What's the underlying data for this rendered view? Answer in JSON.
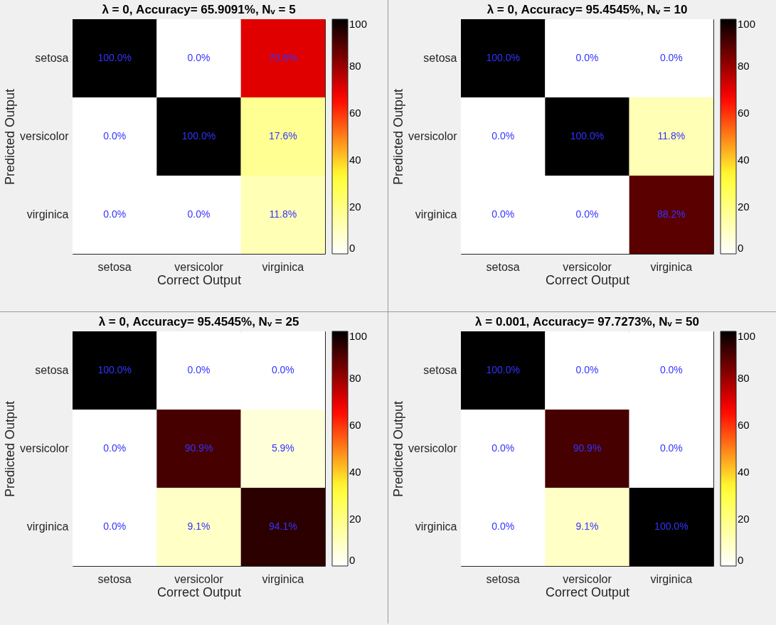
{
  "chart_data": [
    {
      "type": "heatmap",
      "title": "λ = 0, Accuracy= 65.9091%, Nᵥ = 5",
      "xlabel": "Correct Output",
      "ylabel": "Predicted Output",
      "categories": [
        "setosa",
        "versicolor",
        "virginica"
      ],
      "y_categories": [
        "setosa",
        "versicolor",
        "virginica"
      ],
      "cells": [
        [
          100,
          0,
          70.6
        ],
        [
          0,
          100,
          17.6
        ],
        [
          0,
          0,
          11.8
        ]
      ],
      "cell_labels": [
        [
          "100.0%",
          "0.0%",
          "70.6%"
        ],
        [
          "0.0%",
          "100.0%",
          "17.6%"
        ],
        [
          "0.0%",
          "0.0%",
          "11.8%"
        ]
      ],
      "clim": [
        0,
        100
      ],
      "cticks": [
        0,
        20,
        40,
        60,
        80,
        100
      ]
    },
    {
      "type": "heatmap",
      "title": "λ = 0, Accuracy= 95.4545%, Nᵥ = 10",
      "xlabel": "Correct Output",
      "ylabel": "Predicted Output",
      "categories": [
        "setosa",
        "versicolor",
        "virginica"
      ],
      "y_categories": [
        "setosa",
        "versicolor",
        "virginica"
      ],
      "cells": [
        [
          100,
          0,
          0
        ],
        [
          0,
          100,
          11.8
        ],
        [
          0,
          0,
          88.2
        ]
      ],
      "cell_labels": [
        [
          "100.0%",
          "0.0%",
          "0.0%"
        ],
        [
          "0.0%",
          "100.0%",
          "11.8%"
        ],
        [
          "0.0%",
          "0.0%",
          "88.2%"
        ]
      ],
      "clim": [
        0,
        100
      ],
      "cticks": [
        0,
        20,
        40,
        60,
        80,
        100
      ]
    },
    {
      "type": "heatmap",
      "title": "λ = 0, Accuracy= 95.4545%, Nᵥ = 25",
      "xlabel": "Correct Output",
      "ylabel": "Predicted Output",
      "categories": [
        "setosa",
        "versicolor",
        "virginica"
      ],
      "y_categories": [
        "setosa",
        "versicolor",
        "virginica"
      ],
      "cells": [
        [
          100,
          0,
          0
        ],
        [
          0,
          90.9,
          5.9
        ],
        [
          0,
          9.1,
          94.1
        ]
      ],
      "cell_labels": [
        [
          "100.0%",
          "0.0%",
          "0.0%"
        ],
        [
          "0.0%",
          "90.9%",
          "5.9%"
        ],
        [
          "0.0%",
          "9.1%",
          "94.1%"
        ]
      ],
      "clim": [
        0,
        100
      ],
      "cticks": [
        0,
        20,
        40,
        60,
        80,
        100
      ]
    },
    {
      "type": "heatmap",
      "title": "λ = 0.001, Accuracy= 97.7273%, Nᵥ = 50",
      "xlabel": "Correct Output",
      "ylabel": "Predicted Output",
      "categories": [
        "setosa",
        "versicolor",
        "virginica"
      ],
      "y_categories": [
        "setosa",
        "versicolor",
        "virginica"
      ],
      "cells": [
        [
          100,
          0,
          0
        ],
        [
          0,
          90.9,
          0
        ],
        [
          0,
          9.1,
          100
        ]
      ],
      "cell_labels": [
        [
          "100.0%",
          "0.0%",
          "0.0%"
        ],
        [
          "0.0%",
          "90.9%",
          "0.0%"
        ],
        [
          "0.0%",
          "9.1%",
          "100.0%"
        ]
      ],
      "clim": [
        0,
        100
      ],
      "cticks": [
        0,
        20,
        40,
        60,
        80,
        100
      ]
    }
  ]
}
